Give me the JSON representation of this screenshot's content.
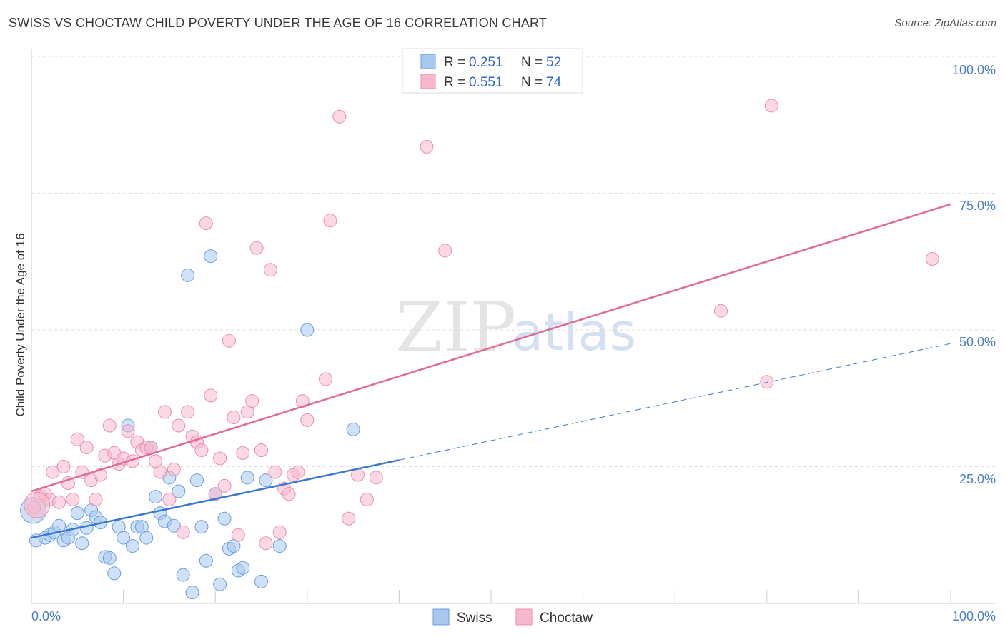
{
  "title": "SWISS VS CHOCTAW CHILD POVERTY UNDER THE AGE OF 16 CORRELATION CHART",
  "source": "Source: ZipAtlas.com",
  "watermark": {
    "zip": "ZIP",
    "atlas": "atlas"
  },
  "legend_top": [
    {
      "r_label": "R = ",
      "r_value": "0.251",
      "n_label": "N = ",
      "n_value": "52"
    },
    {
      "r_label": "R = ",
      "r_value": "0.551",
      "n_label": "N = ",
      "n_value": "74"
    }
  ],
  "legend_bottom": [
    "Swiss",
    "Choctaw"
  ],
  "colors": {
    "swiss_fill": "#a8c8f0",
    "swiss_stroke": "#6a9ee0",
    "swiss_line": "#3a78d0",
    "choctaw_fill": "#f7b8cc",
    "choctaw_stroke": "#e890aa",
    "choctaw_line": "#e06b95",
    "grid": "#dddddd",
    "tick_label": "#4a7cc9"
  },
  "chart_data": {
    "type": "scatter",
    "title": "SWISS VS CHOCTAW CHILD POVERTY UNDER THE AGE OF 16 CORRELATION CHART",
    "xlabel": "",
    "ylabel": "Child Poverty Under the Age of 16",
    "xlim": [
      0,
      100
    ],
    "ylim": [
      0,
      100
    ],
    "x_tick_labels": [
      "0.0%",
      "100.0%"
    ],
    "y_ticks": [
      25,
      50,
      75,
      100
    ],
    "y_tick_labels": [
      "25.0%",
      "50.0%",
      "75.0%",
      "100.0%"
    ],
    "series": [
      {
        "name": "Swiss",
        "R": 0.251,
        "N": 52,
        "trend": {
          "x0": 0,
          "y0": 12.0,
          "x1": 40,
          "y1": 26.2,
          "dash_to_x": 100,
          "dash_to_y": 47.5
        },
        "points": [
          [
            0.5,
            11.5
          ],
          [
            1.5,
            12.0
          ],
          [
            2.0,
            12.5
          ],
          [
            2.5,
            13.0
          ],
          [
            3.0,
            14.2
          ],
          [
            3.5,
            11.5
          ],
          [
            4.0,
            12.0
          ],
          [
            4.5,
            13.5
          ],
          [
            5.0,
            16.5
          ],
          [
            5.5,
            11.0
          ],
          [
            6.0,
            13.8
          ],
          [
            6.5,
            17.0
          ],
          [
            7.0,
            15.8
          ],
          [
            7.5,
            14.8
          ],
          [
            8.0,
            8.5
          ],
          [
            8.5,
            8.3
          ],
          [
            9.0,
            5.5
          ],
          [
            9.5,
            14.0
          ],
          [
            10.0,
            12.0
          ],
          [
            10.5,
            32.5
          ],
          [
            11.0,
            10.5
          ],
          [
            11.5,
            14.0
          ],
          [
            12.0,
            14.0
          ],
          [
            12.5,
            12.0
          ],
          [
            13.0,
            28.5
          ],
          [
            13.5,
            19.5
          ],
          [
            14.0,
            16.5
          ],
          [
            14.5,
            15.0
          ],
          [
            15.0,
            23.0
          ],
          [
            15.5,
            14.2
          ],
          [
            16.0,
            20.5
          ],
          [
            16.5,
            5.2
          ],
          [
            17.0,
            60.0
          ],
          [
            17.5,
            2.0
          ],
          [
            18.0,
            22.5
          ],
          [
            18.5,
            14.0
          ],
          [
            19.0,
            7.8
          ],
          [
            19.5,
            63.5
          ],
          [
            20.0,
            20.0
          ],
          [
            20.5,
            3.5
          ],
          [
            21.0,
            15.5
          ],
          [
            21.5,
            10.0
          ],
          [
            22.0,
            10.5
          ],
          [
            22.5,
            6.0
          ],
          [
            23.0,
            6.5
          ],
          [
            23.5,
            23.0
          ],
          [
            25.0,
            4.0
          ],
          [
            25.5,
            22.5
          ],
          [
            27.0,
            10.5
          ],
          [
            30.0,
            50.0
          ],
          [
            35.0,
            31.8
          ],
          [
            0.2,
            17.0
          ]
        ]
      },
      {
        "name": "Choctaw",
        "R": 0.551,
        "N": 74,
        "trend": {
          "x0": 0,
          "y0": 20.5,
          "x1": 100,
          "y1": 73.0
        },
        "points": [
          [
            0.3,
            17.5
          ],
          [
            1.0,
            19.5
          ],
          [
            1.5,
            20.0
          ],
          [
            2.0,
            19.0
          ],
          [
            2.3,
            24.0
          ],
          [
            3.0,
            18.5
          ],
          [
            3.5,
            25.0
          ],
          [
            4.0,
            22.0
          ],
          [
            4.5,
            19.0
          ],
          [
            5.0,
            30.0
          ],
          [
            5.5,
            24.0
          ],
          [
            6.0,
            28.5
          ],
          [
            6.5,
            22.5
          ],
          [
            7.0,
            19.0
          ],
          [
            7.5,
            23.5
          ],
          [
            8.0,
            27.0
          ],
          [
            8.5,
            32.5
          ],
          [
            9.0,
            27.5
          ],
          [
            9.5,
            25.5
          ],
          [
            10.0,
            26.5
          ],
          [
            10.5,
            31.5
          ],
          [
            11.0,
            26.0
          ],
          [
            11.5,
            29.5
          ],
          [
            12.0,
            28.0
          ],
          [
            12.5,
            28.5
          ],
          [
            13.0,
            28.5
          ],
          [
            13.5,
            26.0
          ],
          [
            14.0,
            24.0
          ],
          [
            14.5,
            35.0
          ],
          [
            15.0,
            19.0
          ],
          [
            15.5,
            24.5
          ],
          [
            16.0,
            32.5
          ],
          [
            16.5,
            13.0
          ],
          [
            17.0,
            35.0
          ],
          [
            17.5,
            30.5
          ],
          [
            18.0,
            29.5
          ],
          [
            18.5,
            28.0
          ],
          [
            19.0,
            69.5
          ],
          [
            19.5,
            38.0
          ],
          [
            20.0,
            20.0
          ],
          [
            20.5,
            26.5
          ],
          [
            21.0,
            21.5
          ],
          [
            21.5,
            48.0
          ],
          [
            22.0,
            34.0
          ],
          [
            22.5,
            12.5
          ],
          [
            23.0,
            27.5
          ],
          [
            23.5,
            35.0
          ],
          [
            24.0,
            37.0
          ],
          [
            24.5,
            65.0
          ],
          [
            25.0,
            28.0
          ],
          [
            25.5,
            11.0
          ],
          [
            26.0,
            61.0
          ],
          [
            26.5,
            24.0
          ],
          [
            27.0,
            13.0
          ],
          [
            27.5,
            21.0
          ],
          [
            28.0,
            20.0
          ],
          [
            28.5,
            23.5
          ],
          [
            29.0,
            24.0
          ],
          [
            29.5,
            37.0
          ],
          [
            30.0,
            33.5
          ],
          [
            32.0,
            41.0
          ],
          [
            32.5,
            70.0
          ],
          [
            33.5,
            89.0
          ],
          [
            34.5,
            15.5
          ],
          [
            35.5,
            23.5
          ],
          [
            36.5,
            19.0
          ],
          [
            37.5,
            23.0
          ],
          [
            43.0,
            83.5
          ],
          [
            45.0,
            64.5
          ],
          [
            75.0,
            53.5
          ],
          [
            80.0,
            40.5
          ],
          [
            80.5,
            91.0
          ],
          [
            98.0,
            63.0
          ],
          [
            0.6,
            18.0
          ]
        ]
      }
    ]
  }
}
